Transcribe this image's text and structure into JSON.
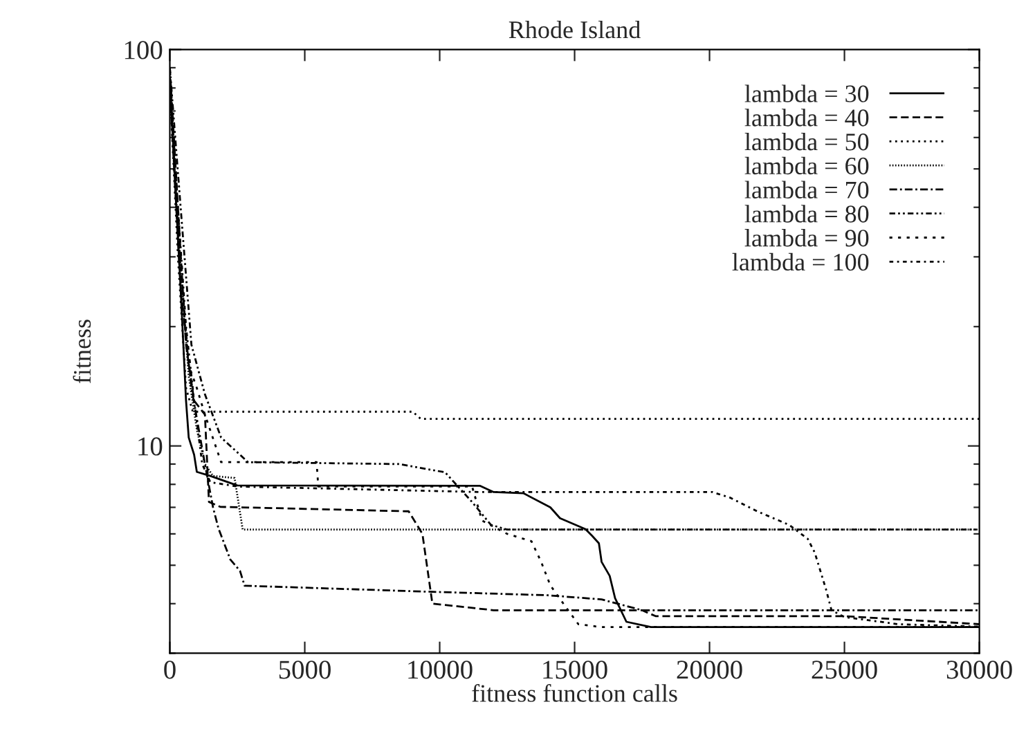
{
  "chart_data": {
    "type": "line",
    "title": "Rhode Island",
    "xlabel": "fitness function calls",
    "ylabel": "fitness",
    "log": "y",
    "xlim": [
      0,
      30000
    ],
    "ylim": [
      3,
      100
    ],
    "xticks": [
      0,
      5000,
      10000,
      15000,
      20000,
      25000,
      30000
    ],
    "yticks": [
      {
        "value": 3,
        "label": null
      },
      {
        "value": 4,
        "label": null
      },
      {
        "value": 5,
        "label": null
      },
      {
        "value": 6,
        "label": null
      },
      {
        "value": 7,
        "label": null
      },
      {
        "value": 8,
        "label": null
      },
      {
        "value": 9,
        "label": null
      },
      10,
      {
        "value": 20,
        "label": null
      },
      {
        "value": 30,
        "label": null
      },
      {
        "value": 40,
        "label": null
      },
      {
        "value": 50,
        "label": null
      },
      {
        "value": 60,
        "label": null
      },
      {
        "value": 70,
        "label": null
      },
      {
        "value": 80,
        "label": null
      },
      {
        "value": 90,
        "label": null
      },
      100
    ],
    "legend": "top right",
    "grid": false,
    "series": [
      {
        "name": "lambda = 30",
        "color": "#000000",
        "line_style": "solid",
        "x": [
          0,
          200,
          400,
          600,
          700,
          900,
          1000,
          1500,
          2500,
          11500,
          12000,
          13100,
          14100,
          14460,
          15400,
          15650,
          15900,
          16000,
          16300,
          16500,
          16920,
          17830,
          30000
        ],
        "values": [
          85,
          45,
          25,
          13,
          10.5,
          9.5,
          8.6,
          8.4,
          7.95,
          7.93,
          7.65,
          7.6,
          7.0,
          6.57,
          6.17,
          5.93,
          5.68,
          5.1,
          4.7,
          4.13,
          3.6,
          3.49,
          3.49
        ]
      },
      {
        "name": "lambda = 40",
        "color": "#000000",
        "line_style": "dashed",
        "x": [
          0,
          300,
          600,
          900,
          1300,
          1450,
          1870,
          8850,
          9360,
          9730,
          10500,
          12000,
          17500,
          18000,
          25000,
          30000
        ],
        "values": [
          90,
          40,
          18,
          13,
          12,
          7.22,
          7.02,
          6.84,
          6.0,
          4.0,
          3.95,
          3.85,
          3.85,
          3.72,
          3.72,
          3.55
        ]
      },
      {
        "name": "lambda = 50",
        "color": "#000000",
        "line_style": "dotted",
        "x": [
          0,
          300,
          600,
          850,
          9000,
          9300,
          30000
        ],
        "values": [
          80,
          30,
          14,
          12.2,
          12.2,
          11.7,
          11.7
        ]
      },
      {
        "name": "lambda = 60",
        "color": "#000000",
        "line_style": "finedotted",
        "x": [
          0,
          300,
          700,
          1000,
          1300,
          1600,
          2400,
          2700,
          30000
        ],
        "values": [
          85,
          35,
          15,
          11,
          9,
          8.4,
          8.3,
          6.15,
          6.15
        ]
      },
      {
        "name": "lambda = 70",
        "color": "#000000",
        "line_style": "dashdot",
        "x": [
          0,
          400,
          800,
          1300,
          1600,
          1800,
          2240,
          2600,
          2770,
          9000,
          14000,
          16000,
          17500,
          30000
        ],
        "values": [
          80,
          25,
          14,
          9,
          7,
          6.2,
          5.17,
          4.84,
          4.44,
          4.3,
          4.2,
          4.1,
          3.85,
          3.85
        ]
      },
      {
        "name": "lambda = 80",
        "color": "#000000",
        "line_style": "dashdotdot",
        "x": [
          0,
          400,
          800,
          1300,
          1900,
          2900,
          8500,
          10200,
          11200,
          11900,
          12500,
          30000
        ],
        "values": [
          90,
          40,
          18,
          13.5,
          10.5,
          9.1,
          9.0,
          8.58,
          7.22,
          6.32,
          6.15,
          6.15
        ]
      },
      {
        "name": "lambda = 90",
        "color": "#000000",
        "line_style": "sparsedotted",
        "x": [
          0,
          300,
          700,
          1000,
          1300,
          1900,
          5440,
          5500,
          11200,
          11570,
          12500,
          13400,
          13760,
          14100,
          14700,
          15140,
          16000,
          30000
        ],
        "values": [
          85,
          35,
          16,
          14,
          12,
          9.1,
          9.1,
          7.9,
          7.9,
          6.48,
          6.0,
          5.75,
          5.1,
          4.45,
          3.9,
          3.55,
          3.49,
          3.49
        ]
      },
      {
        "name": "lambda = 100",
        "color": "#000000",
        "line_style": "dotdash",
        "x": [
          0,
          300,
          600,
          900,
          1200,
          1500,
          2500,
          11500,
          20100,
          20750,
          21770,
          22950,
          23640,
          23900,
          24320,
          24520,
          25000,
          27000,
          30000
        ],
        "values": [
          85,
          40,
          20,
          13,
          9,
          8.1,
          7.9,
          7.65,
          7.65,
          7.41,
          6.84,
          6.32,
          5.83,
          5.38,
          4.34,
          3.85,
          3.7,
          3.55,
          3.5
        ]
      }
    ]
  }
}
